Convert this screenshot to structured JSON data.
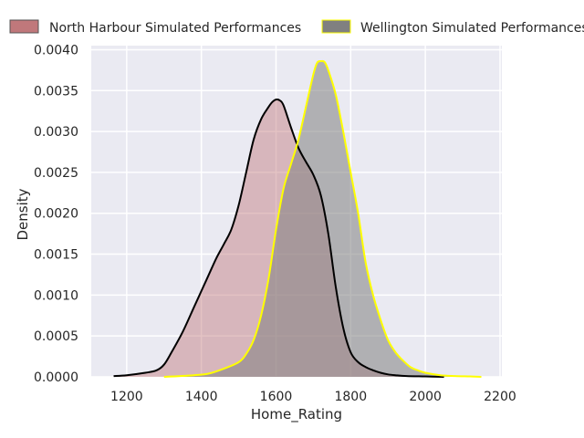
{
  "chart_data": {
    "type": "area",
    "title": "",
    "xlabel": "Home_Rating",
    "ylabel": "Density",
    "xlim": [
      1105,
      2205
    ],
    "ylim": [
      0,
      0.00405
    ],
    "xticks": [
      1200,
      1400,
      1600,
      1800,
      2000,
      2200
    ],
    "xtick_labels": [
      "1200",
      "1400",
      "1600",
      "1800",
      "2000",
      "2200"
    ],
    "yticks": [
      0,
      0.0005,
      0.001,
      0.0015,
      0.002,
      0.0025,
      0.003,
      0.0035,
      0.004
    ],
    "ytick_labels": [
      "0.0000",
      "0.0005",
      "0.0010",
      "0.0015",
      "0.0020",
      "0.0025",
      "0.0030",
      "0.0035",
      "0.0040"
    ],
    "grid": true,
    "legend_position": "top",
    "series": [
      {
        "name": "North Harbour Simulated Performances",
        "fill_color": "#c0787b",
        "fill_opacity": 0.45,
        "line_color": "#000000",
        "x": [
          1165,
          1200,
          1250,
          1280,
          1300,
          1320,
          1350,
          1380,
          1400,
          1420,
          1440,
          1460,
          1480,
          1500,
          1520,
          1540,
          1560,
          1580,
          1590,
          1600,
          1610,
          1620,
          1640,
          1660,
          1680,
          1700,
          1720,
          1740,
          1760,
          1780,
          1800,
          1820,
          1840,
          1860,
          1880,
          1900,
          1920,
          1950,
          2000,
          2050
        ],
        "y": [
          1e-05,
          2e-05,
          5e-05,
          8e-05,
          0.00015,
          0.0003,
          0.00055,
          0.00085,
          0.00105,
          0.00125,
          0.00145,
          0.00162,
          0.0018,
          0.0021,
          0.0025,
          0.0029,
          0.00315,
          0.0033,
          0.00336,
          0.00339,
          0.00338,
          0.00332,
          0.00305,
          0.0028,
          0.00263,
          0.00247,
          0.00222,
          0.00175,
          0.0011,
          0.0006,
          0.0003,
          0.00018,
          0.00012,
          8e-05,
          5e-05,
          3e-05,
          2e-05,
          1e-05,
          5e-06,
          0
        ]
      },
      {
        "name": "Wellington Simulated Performances",
        "fill_color": "#808080",
        "fill_opacity": 0.55,
        "line_color": "#ffff00",
        "x": [
          1300,
          1380,
          1420,
          1460,
          1500,
          1520,
          1540,
          1560,
          1580,
          1600,
          1620,
          1640,
          1660,
          1680,
          1700,
          1710,
          1720,
          1730,
          1740,
          1760,
          1780,
          1800,
          1820,
          1840,
          1860,
          1880,
          1900,
          1920,
          1940,
          1960,
          1980,
          2000,
          2040,
          2080,
          2120,
          2150
        ],
        "y": [
          0,
          2e-05,
          4e-05,
          0.0001,
          0.00018,
          0.00028,
          0.00045,
          0.00075,
          0.0012,
          0.0018,
          0.0023,
          0.0026,
          0.0029,
          0.0033,
          0.0037,
          0.00384,
          0.00386,
          0.00385,
          0.00375,
          0.00345,
          0.003,
          0.0025,
          0.002,
          0.0014,
          0.001,
          0.0007,
          0.00045,
          0.0003,
          0.0002,
          0.00012,
          8e-05,
          5e-05,
          2e-05,
          1e-05,
          5e-06,
          0
        ]
      }
    ]
  }
}
